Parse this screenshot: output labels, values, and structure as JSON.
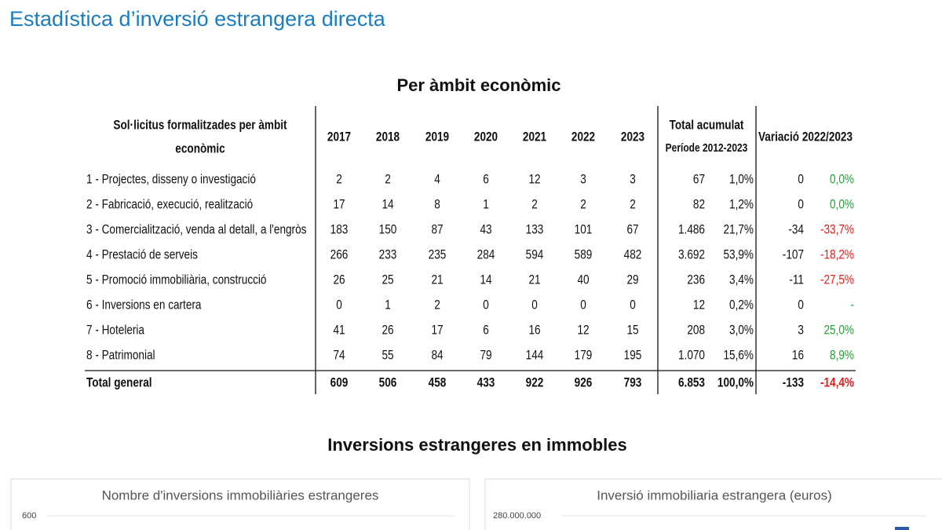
{
  "header": {
    "title": "Estadística d’inversió estrangera directa"
  },
  "table_section": {
    "title": "Per àmbit econòmic"
  },
  "table": {
    "header": {
      "label_lines": [
        "Sol·licitus formalitzades per àmbit",
        "econòmic"
      ],
      "years": [
        "2017",
        "2018",
        "2019",
        "2020",
        "2021",
        "2022",
        "2023"
      ],
      "total_lines": [
        "Total acumulat",
        "Període 2012-2023"
      ],
      "variation": "Variació 2022/2023"
    },
    "rows": [
      [
        "1 - Projectes, disseny o investigació",
        "2",
        "2",
        "4",
        "6",
        "12",
        "3",
        "3",
        "67",
        "1,0%",
        "0",
        "0,0%"
      ],
      [
        "2 - Fabricació, execució, realització",
        "17",
        "14",
        "8",
        "1",
        "2",
        "2",
        "2",
        "82",
        "1,2%",
        "0",
        "0,0%"
      ],
      [
        "3 - Comercialització, venda al detall, a l'engròs",
        "183",
        "150",
        "87",
        "43",
        "133",
        "101",
        "67",
        "1.486",
        "21,7%",
        "-34",
        "-33,7%"
      ],
      [
        "4 - Prestació de serveis",
        "266",
        "233",
        "235",
        "284",
        "594",
        "589",
        "482",
        "3.692",
        "53,9%",
        "-107",
        "-18,2%"
      ],
      [
        "5 - Promoció immobiliària, construcció",
        "26",
        "25",
        "21",
        "14",
        "21",
        "40",
        "29",
        "236",
        "3,4%",
        "-11",
        "-27,5%"
      ],
      [
        "6 - Inversions en cartera",
        "0",
        "1",
        "2",
        "0",
        "0",
        "0",
        "0",
        "12",
        "0,2%",
        "0",
        "-"
      ],
      [
        "7 - Hoteleria",
        "41",
        "26",
        "17",
        "6",
        "16",
        "12",
        "15",
        "208",
        "3,0%",
        "3",
        "25,0%"
      ],
      [
        "8 - Patrimonial",
        "74",
        "55",
        "84",
        "79",
        "144",
        "179",
        "195",
        "1.070",
        "15,6%",
        "16",
        "8,9%"
      ]
    ],
    "total": [
      "Total general",
      "609",
      "506",
      "458",
      "433",
      "922",
      "926",
      "793",
      "6.853",
      "100,0%",
      "-133",
      "-14,4%"
    ]
  },
  "charts_section": {
    "title": "Inversions estrangeres en immobles"
  },
  "cards": [
    {
      "title": "Nombre d'inversions immobiliàries estrangeres",
      "top_tick": "600"
    },
    {
      "title": "Inversió immobiliaria estrangera (euros)",
      "top_tick": "280.000.000"
    }
  ]
}
